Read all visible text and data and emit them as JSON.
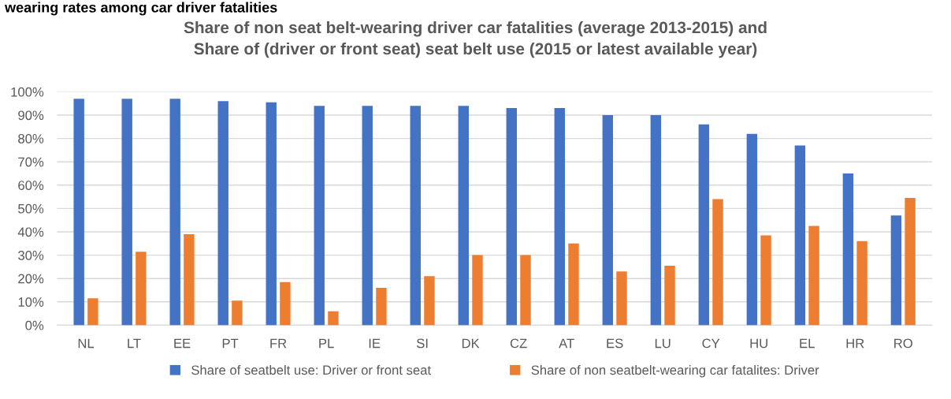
{
  "chart_data": {
    "type": "bar",
    "title": "Share of non seat belt-wearing driver car fatalities (average 2013-2015) and\nShare of (driver or front seat) seat belt use (2015 or latest available year)",
    "annotations": [
      "wearing rates among car driver fatalities"
    ],
    "categories": [
      "NL",
      "LT",
      "EE",
      "PT",
      "FR",
      "PL",
      "IE",
      "SI",
      "DK",
      "CZ",
      "AT",
      "ES",
      "LU",
      "CY",
      "HU",
      "EL",
      "HR",
      "RO"
    ],
    "series": [
      {
        "name": "Share of seatbelt use: Driver or front seat",
        "color": "#4472c4",
        "values": [
          97,
          97,
          97,
          96,
          95.5,
          94,
          94,
          94,
          94,
          93,
          93,
          90,
          90,
          86,
          82,
          77,
          65,
          47
        ]
      },
      {
        "name": "Share of non seatbelt-wearing car fatalites: Driver",
        "color": "#ed7d31",
        "values": [
          11.5,
          31.5,
          39,
          10.5,
          18.5,
          6,
          16,
          21,
          30,
          30,
          35,
          23,
          25.5,
          54,
          38.5,
          42.5,
          36,
          54.5
        ]
      }
    ],
    "ylim": [
      0,
      100
    ],
    "yticks": [
      {
        "value": 0,
        "label": "0%"
      },
      {
        "value": 10,
        "label": "10%"
      },
      {
        "value": 20,
        "label": "20%"
      },
      {
        "value": 30,
        "label": "30%"
      },
      {
        "value": 40,
        "label": "40%"
      },
      {
        "value": 50,
        "label": "50%"
      },
      {
        "value": 60,
        "label": "60%"
      },
      {
        "value": 70,
        "label": "70%"
      },
      {
        "value": 80,
        "label": "80%"
      },
      {
        "value": 90,
        "label": "90%"
      },
      {
        "value": 100,
        "label": "100%"
      }
    ],
    "grid": "y",
    "legend": "bottom"
  }
}
